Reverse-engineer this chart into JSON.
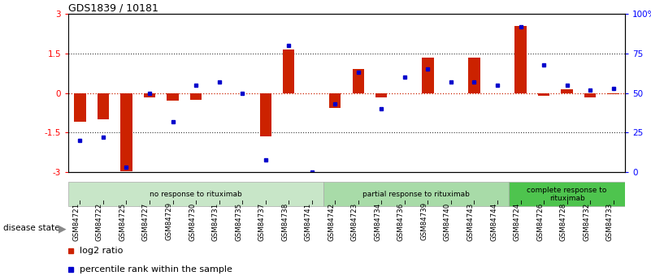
{
  "title": "GDS1839 / 10181",
  "samples": [
    "GSM84721",
    "GSM84722",
    "GSM84725",
    "GSM84727",
    "GSM84729",
    "GSM84730",
    "GSM84731",
    "GSM84735",
    "GSM84737",
    "GSM84738",
    "GSM84741",
    "GSM84742",
    "GSM84723",
    "GSM84734",
    "GSM84736",
    "GSM84739",
    "GSM84740",
    "GSM84743",
    "GSM84744",
    "GSM84724",
    "GSM84726",
    "GSM84728",
    "GSM84732",
    "GSM84733"
  ],
  "log2_ratio": [
    -1.1,
    -1.0,
    -2.95,
    -0.15,
    -0.3,
    -0.25,
    0.0,
    0.0,
    -1.65,
    1.65,
    0.0,
    -0.55,
    0.9,
    -0.15,
    0.0,
    1.35,
    0.0,
    1.35,
    0.0,
    2.55,
    -0.1,
    0.15,
    -0.15,
    -0.05
  ],
  "percentile": [
    20,
    22,
    3,
    50,
    32,
    55,
    57,
    50,
    8,
    80,
    0,
    43,
    63,
    40,
    60,
    65,
    57,
    57,
    55,
    92,
    68,
    55,
    52,
    53
  ],
  "groups": [
    {
      "label": "no response to rituximab",
      "start": 0,
      "end": 11,
      "color": "#c8e6c8"
    },
    {
      "label": "partial response to rituximab",
      "start": 11,
      "end": 19,
      "color": "#a8dba8"
    },
    {
      "label": "complete response to\nrituximab",
      "start": 19,
      "end": 24,
      "color": "#4ec44e"
    }
  ],
  "ylim": [
    -3,
    3
  ],
  "yticks_left": [
    -3,
    -1.5,
    0,
    1.5,
    3
  ],
  "yticks_right": [
    0,
    25,
    50,
    75,
    100
  ],
  "ytick_labels_right": [
    "0",
    "25",
    "50",
    "75",
    "100%"
  ],
  "bar_color": "#cc2200",
  "dot_color": "#0000cc",
  "bg_color": "#ffffff",
  "bar_width": 0.5
}
